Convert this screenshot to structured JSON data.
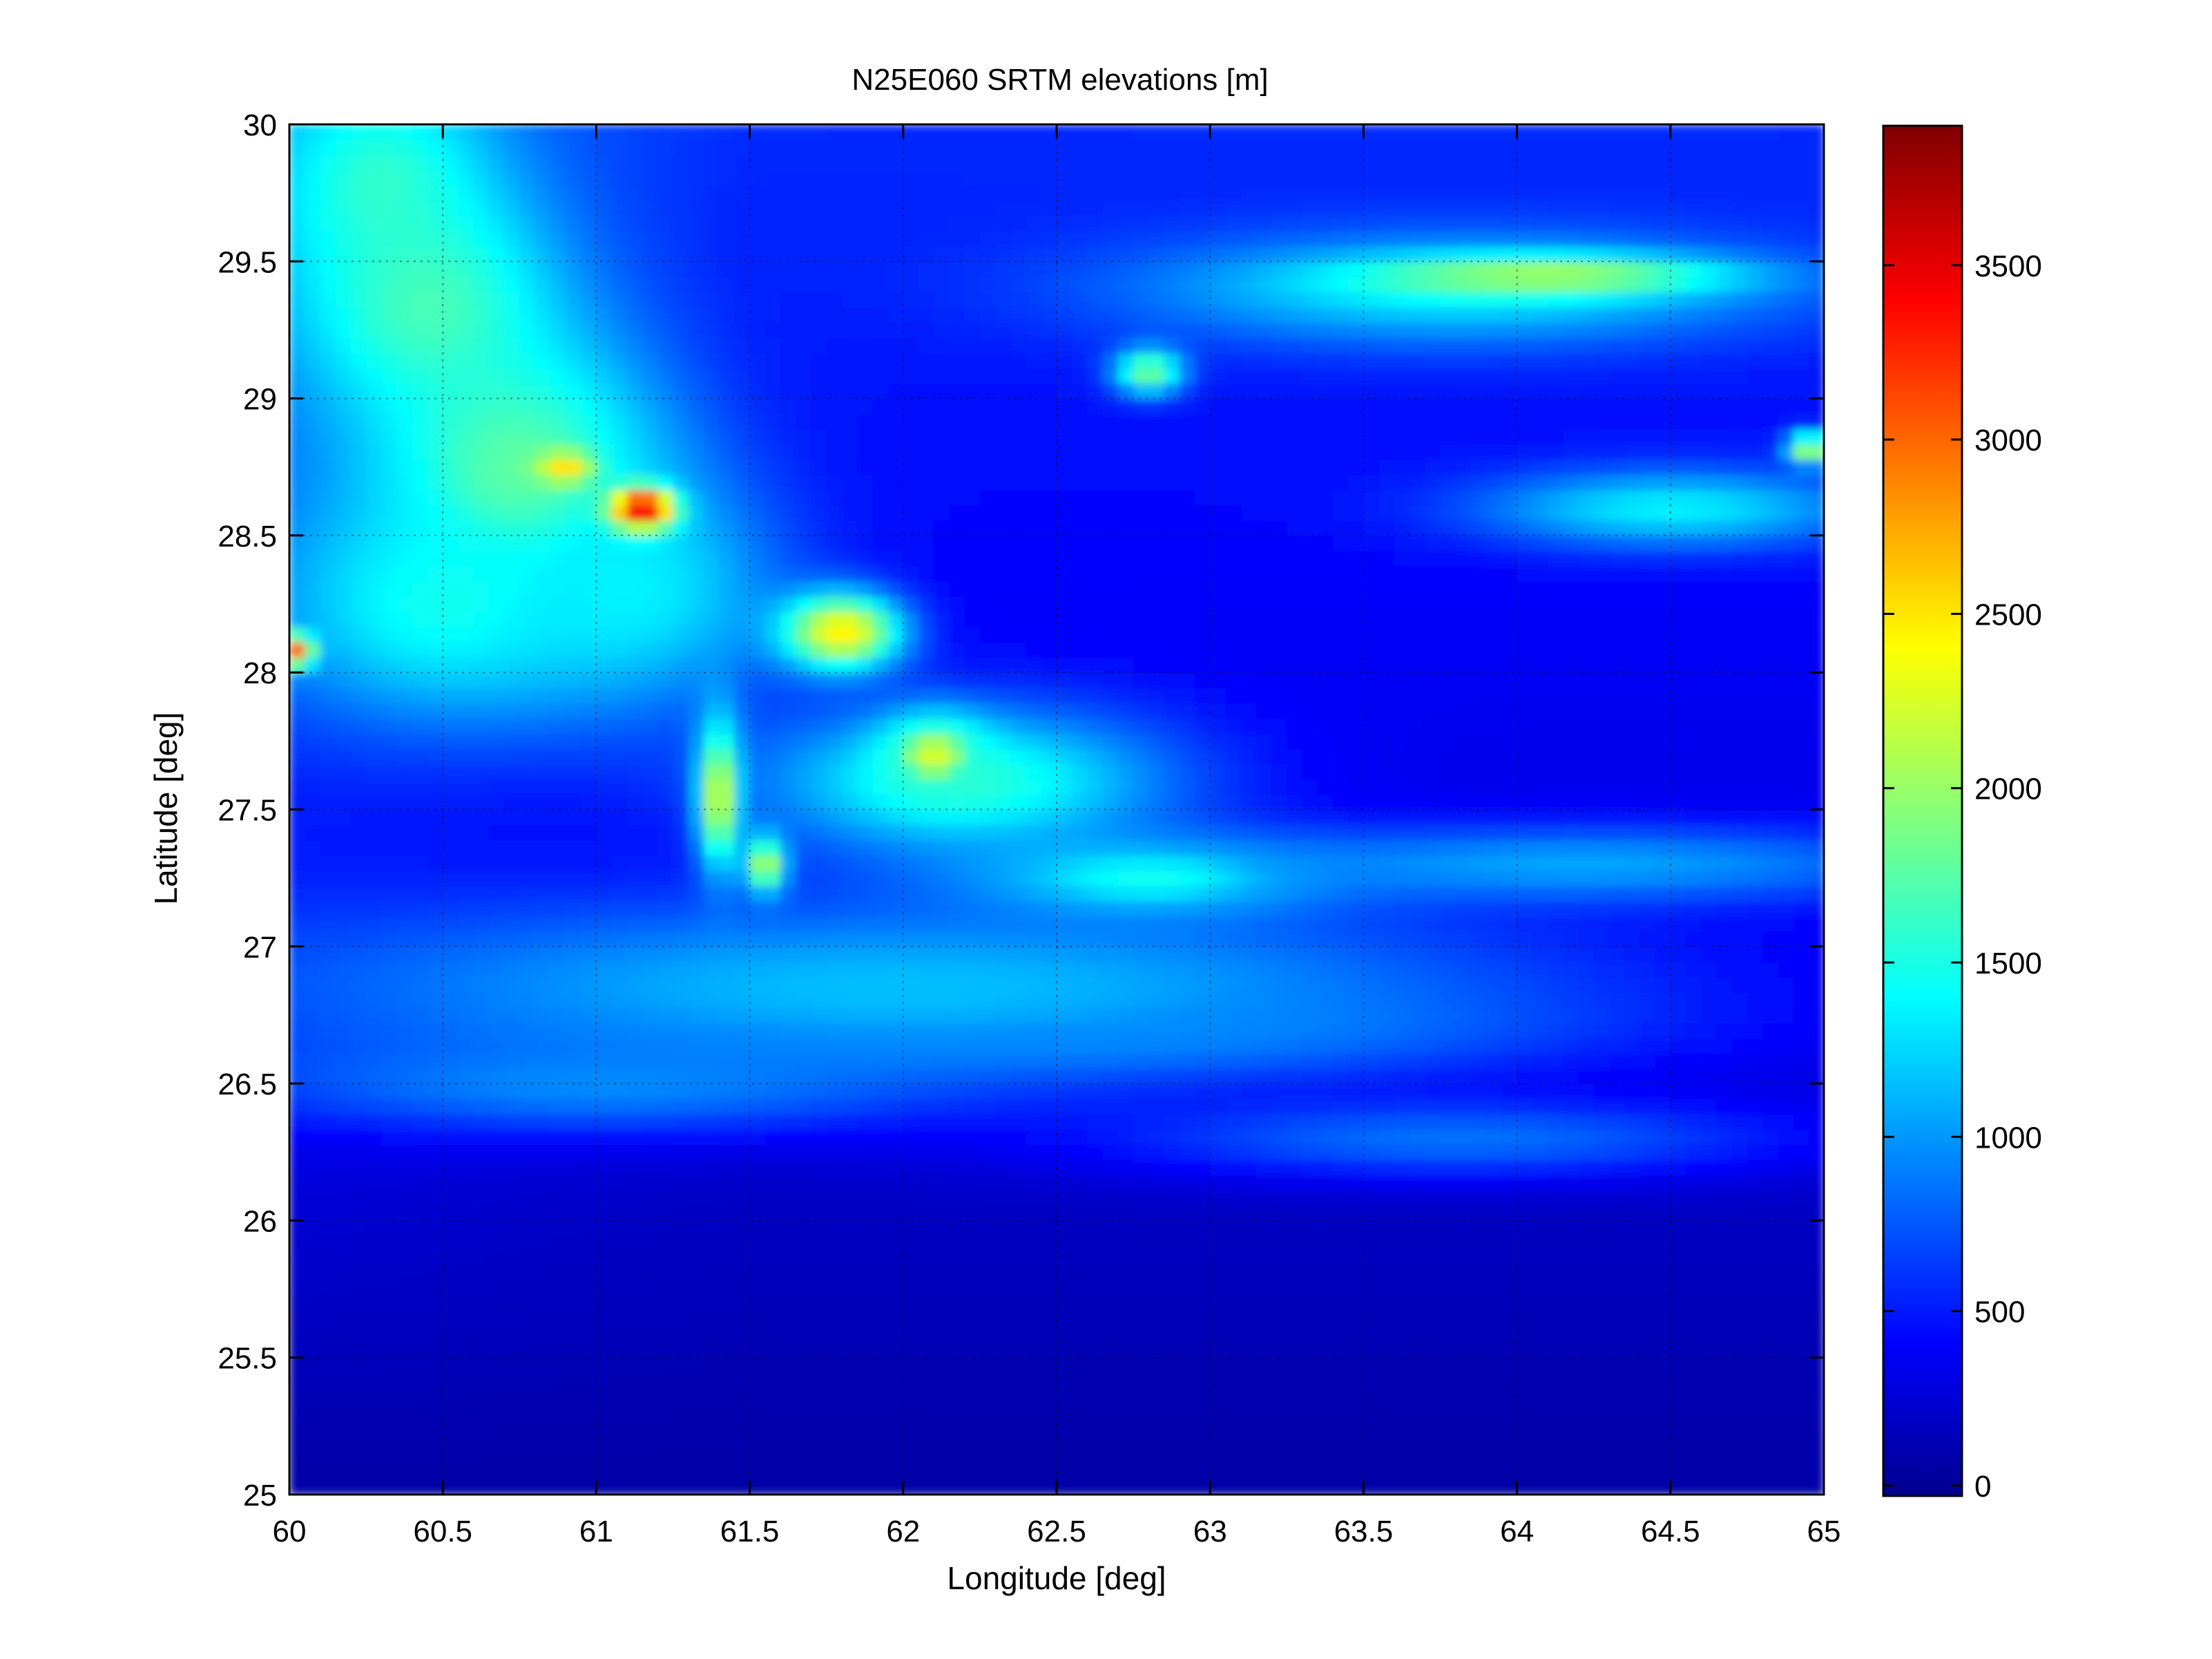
{
  "chart_data": {
    "type": "heatmap",
    "title": "N25E060 SRTM elevations [m]",
    "xlabel": "Longitude [deg]",
    "ylabel": "Latitude [deg]",
    "xlim": [
      60,
      65
    ],
    "ylim": [
      25,
      30
    ],
    "x_ticks": [
      "60",
      "60.5",
      "61",
      "61.5",
      "62",
      "62.5",
      "63",
      "63.5",
      "64",
      "64.5",
      "65"
    ],
    "y_ticks": [
      "25",
      "25.5",
      "26",
      "26.5",
      "27",
      "27.5",
      "28",
      "28.5",
      "29",
      "29.5",
      "30"
    ],
    "grid": true,
    "colormap": "jet",
    "colorbar": {
      "range": [
        -30,
        3900
      ],
      "ticks": [
        "0",
        "500",
        "1000",
        "1500",
        "2000",
        "2500",
        "3000",
        "3500"
      ],
      "placement": "right"
    },
    "features": [
      {
        "lon": 60.3,
        "lat": 29.8,
        "elev": 1600,
        "sx": 0.25,
        "sy": 0.28
      },
      {
        "lon": 60.45,
        "lat": 29.35,
        "elev": 1700,
        "sx": 0.3,
        "sy": 0.3
      },
      {
        "lon": 60.75,
        "lat": 28.75,
        "elev": 1800,
        "sx": 0.35,
        "sy": 0.35
      },
      {
        "lon": 60.5,
        "lat": 28.25,
        "elev": 1500,
        "sx": 0.4,
        "sy": 0.3
      },
      {
        "lon": 61.1,
        "lat": 28.3,
        "elev": 1400,
        "sx": 0.35,
        "sy": 0.3
      },
      {
        "lon": 61.15,
        "lat": 28.6,
        "elev": 3700,
        "sx": 0.07,
        "sy": 0.05
      },
      {
        "lon": 60.9,
        "lat": 28.75,
        "elev": 2600,
        "sx": 0.06,
        "sy": 0.04
      },
      {
        "lon": 60.02,
        "lat": 28.08,
        "elev": 3000,
        "sx": 0.04,
        "sy": 0.04
      },
      {
        "lon": 61.4,
        "lat": 27.55,
        "elev": 2300,
        "sx": 0.05,
        "sy": 0.2
      },
      {
        "lon": 61.55,
        "lat": 27.3,
        "elev": 2200,
        "sx": 0.05,
        "sy": 0.08
      },
      {
        "lon": 61.8,
        "lat": 28.15,
        "elev": 2500,
        "sx": 0.14,
        "sy": 0.1
      },
      {
        "lon": 62.1,
        "lat": 27.7,
        "elev": 2300,
        "sx": 0.12,
        "sy": 0.1
      },
      {
        "lon": 62.2,
        "lat": 27.6,
        "elev": 1600,
        "sx": 0.5,
        "sy": 0.2
      },
      {
        "lon": 62.8,
        "lat": 27.25,
        "elev": 1500,
        "sx": 0.4,
        "sy": 0.1
      },
      {
        "lon": 63.8,
        "lat": 29.4,
        "elev": 1400,
        "sx": 0.75,
        "sy": 0.14
      },
      {
        "lon": 64.1,
        "lat": 29.45,
        "elev": 2100,
        "sx": 0.4,
        "sy": 0.05
      },
      {
        "lon": 62.8,
        "lat": 29.1,
        "elev": 1900,
        "sx": 0.08,
        "sy": 0.06
      },
      {
        "lon": 64.5,
        "lat": 28.6,
        "elev": 1400,
        "sx": 0.45,
        "sy": 0.1
      },
      {
        "lon": 64.95,
        "lat": 28.82,
        "elev": 2200,
        "sx": 0.05,
        "sy": 0.04
      },
      {
        "lon": 62.0,
        "lat": 26.85,
        "elev": 1200,
        "sx": 1.6,
        "sy": 0.25
      },
      {
        "lon": 64.2,
        "lat": 27.3,
        "elev": 1100,
        "sx": 0.9,
        "sy": 0.1
      },
      {
        "lon": 61.0,
        "lat": 26.5,
        "elev": 1000,
        "sx": 0.8,
        "sy": 0.12
      },
      {
        "lon": 63.8,
        "lat": 26.3,
        "elev": 900,
        "sx": 0.8,
        "sy": 0.1
      },
      {
        "lon": 62.5,
        "lat": 26.7,
        "elev": 1000,
        "sx": 1.0,
        "sy": 0.1
      }
    ]
  }
}
